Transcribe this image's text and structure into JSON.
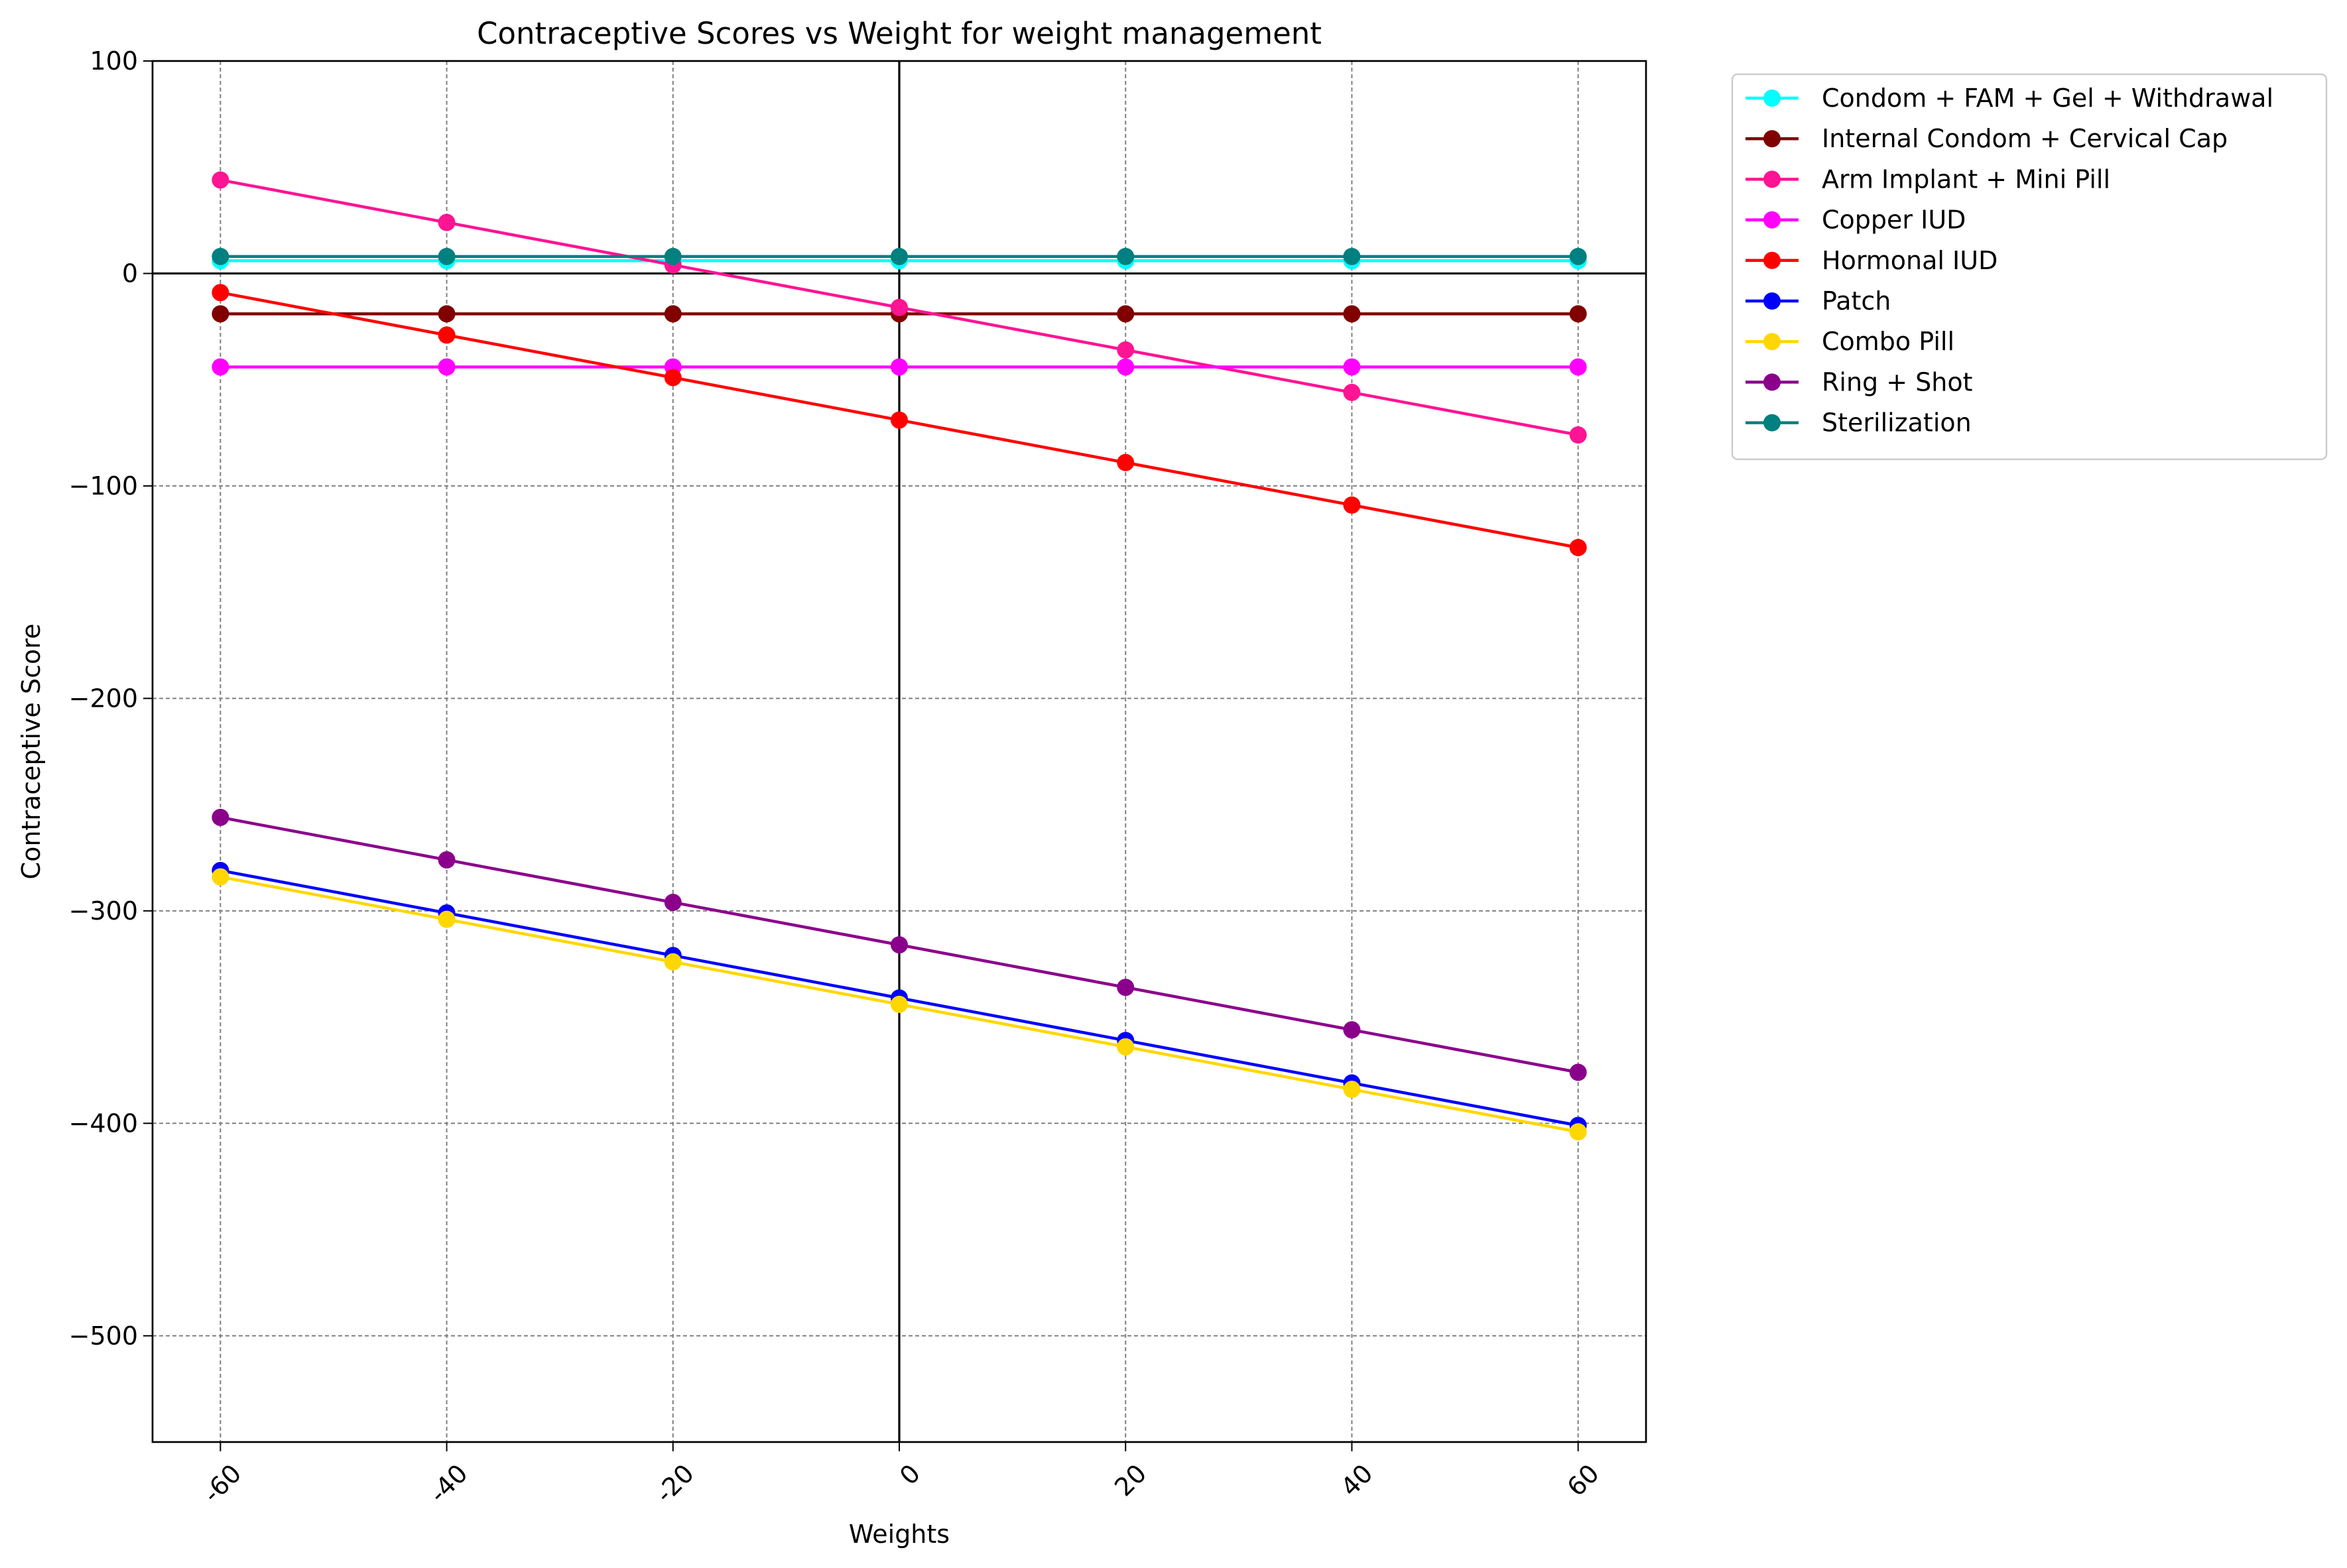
{
  "chart_data": {
    "type": "line",
    "title": "Contraceptive Scores vs Weight for weight management",
    "xlabel": "Weights",
    "ylabel": "Contraceptive Score",
    "x": [
      -60,
      -40,
      -20,
      0,
      20,
      40,
      60
    ],
    "x_tick_labels": [
      "-60",
      "-40",
      "-20",
      "0",
      "20",
      "40",
      "60"
    ],
    "xlim": [
      -66,
      66
    ],
    "ylim": [
      -550,
      100
    ],
    "y_ticks": [
      100,
      0,
      -100,
      -200,
      -300,
      -400,
      -500
    ],
    "y_tick_labels": [
      "100",
      "0",
      "−100",
      "−200",
      "−300",
      "−400",
      "−500"
    ],
    "grid": true,
    "legend_position": "outside-top-right",
    "series": [
      {
        "name": "Condom + FAM + Gel + Withdrawal",
        "color": "#00ffff",
        "values": [
          6,
          6,
          6,
          6,
          6,
          6,
          6
        ]
      },
      {
        "name": "Internal Condom + Cervical Cap",
        "color": "#800000",
        "values": [
          -19,
          -19,
          -19,
          -19,
          -19,
          -19,
          -19
        ]
      },
      {
        "name": "Arm Implant + Mini Pill",
        "color": "#ff1493",
        "values": [
          44,
          24,
          4,
          -16,
          -36,
          -56,
          -76
        ]
      },
      {
        "name": "Copper IUD",
        "color": "#ff00ff",
        "values": [
          -44,
          -44,
          -44,
          -44,
          -44,
          -44,
          -44
        ]
      },
      {
        "name": "Hormonal IUD",
        "color": "#ff0000",
        "values": [
          -9,
          -29,
          -49,
          -69,
          -89,
          -109,
          -129
        ]
      },
      {
        "name": "Patch",
        "color": "#0000ff",
        "values": [
          -281,
          -301,
          -321,
          -341,
          -361,
          -381,
          -401
        ]
      },
      {
        "name": "Combo Pill",
        "color": "#ffd700",
        "values": [
          -284,
          -304,
          -324,
          -344,
          -364,
          -384,
          -404
        ]
      },
      {
        "name": "Ring + Shot",
        "color": "#8b008b",
        "values": [
          -256,
          -276,
          -296,
          -316,
          -336,
          -356,
          -376
        ]
      },
      {
        "name": "Sterilization",
        "color": "#008080",
        "values": [
          8,
          8,
          8,
          8,
          8,
          8,
          8
        ]
      }
    ]
  }
}
